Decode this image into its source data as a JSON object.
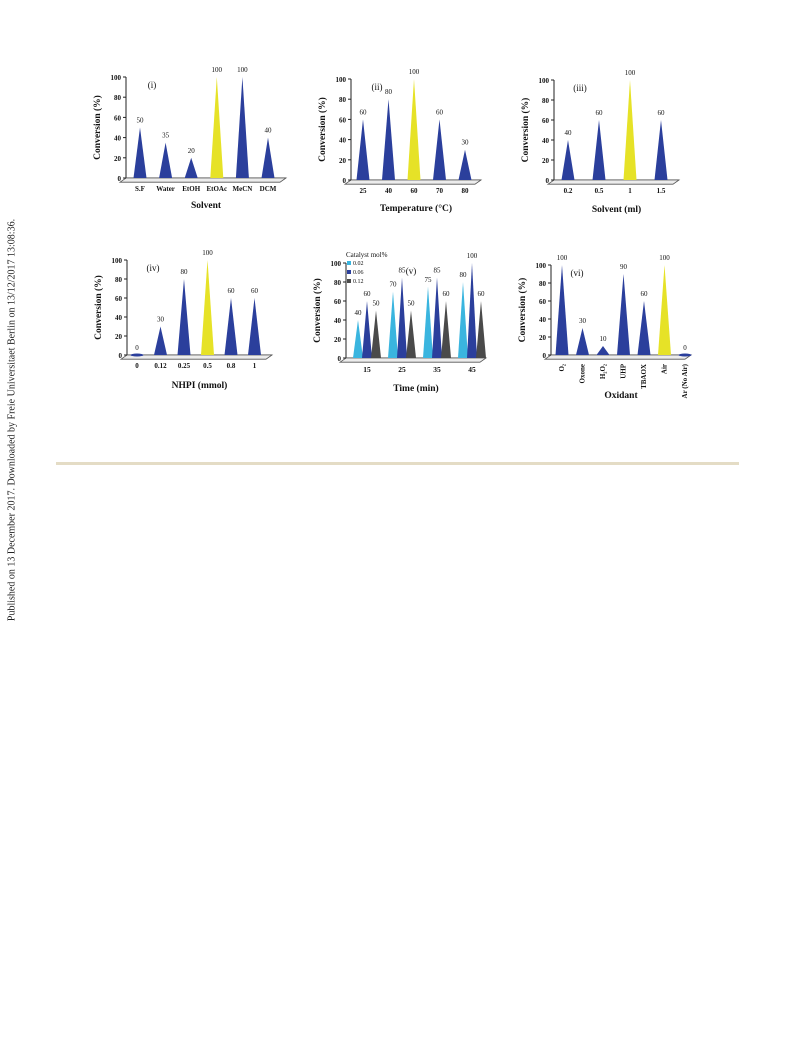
{
  "side_note": "Published on 13 December 2017. Downloaded by Freie Universitaet Berlin on 13/12/2017 13:08:36.",
  "colors": {
    "blue": "#2b3f9c",
    "yellow": "#e6e227",
    "cyan": "#3ab5df",
    "grey": "#4a4a4a",
    "rule": "#e4dcc5"
  },
  "chart_data": [
    {
      "type": "bar",
      "panel": "(i)",
      "xlabel": "Solvent",
      "ylabel": "Conversion (%)",
      "ylim": [
        0,
        100
      ],
      "yticks": [
        0,
        20,
        40,
        60,
        80,
        100
      ],
      "categories": [
        "S.F",
        "Water",
        "EtOH",
        "EtOAc",
        "MeCN",
        "DCM"
      ],
      "values": [
        50,
        35,
        20,
        100,
        100,
        40
      ],
      "highlight": [
        3
      ]
    },
    {
      "type": "bar",
      "panel": "(ii)",
      "xlabel": "Temperature (°C)",
      "ylabel": "Conversion (%)",
      "ylim": [
        0,
        100
      ],
      "yticks": [
        0,
        20,
        40,
        60,
        80,
        100
      ],
      "categories": [
        "25",
        "40",
        "60",
        "70",
        "80"
      ],
      "values": [
        60,
        80,
        100,
        60,
        30
      ],
      "highlight": [
        2
      ]
    },
    {
      "type": "bar",
      "panel": "(iii)",
      "xlabel": "Solvent (ml)",
      "ylabel": "Conversion (%)",
      "ylim": [
        0,
        100
      ],
      "yticks": [
        0,
        20,
        40,
        60,
        80,
        100
      ],
      "categories": [
        "0.2",
        "0.5",
        "1",
        "1.5"
      ],
      "values": [
        40,
        60,
        100,
        60
      ],
      "highlight": [
        2
      ]
    },
    {
      "type": "bar",
      "panel": "(iv)",
      "xlabel": "NHPI (mmol)",
      "ylabel": "Conversion (%)",
      "ylim": [
        0,
        100
      ],
      "yticks": [
        0,
        20,
        40,
        60,
        80,
        100
      ],
      "categories": [
        "0",
        "0.12",
        "0.25",
        "0.5",
        "0.8",
        "1"
      ],
      "values": [
        0,
        30,
        80,
        100,
        60,
        60
      ],
      "highlight": [
        3
      ]
    },
    {
      "type": "bar",
      "panel": "(v)",
      "xlabel": "Time (min)",
      "ylabel": "Conversion (%)",
      "ylim": [
        0,
        100
      ],
      "yticks": [
        0,
        20,
        40,
        60,
        80,
        100
      ],
      "legend_title": "Catalyst mol%",
      "legend": "top-left",
      "categories": [
        "15",
        "25",
        "35",
        "45"
      ],
      "series": [
        {
          "name": "0.02",
          "values": [
            40,
            70,
            75,
            80
          ]
        },
        {
          "name": "0.06",
          "values": [
            60,
            85,
            85,
            100
          ]
        },
        {
          "name": "0.12",
          "values": [
            50,
            50,
            60,
            60
          ]
        }
      ]
    },
    {
      "type": "bar",
      "panel": "(vi)",
      "xlabel": "Oxidant",
      "ylabel": "Conversion (%)",
      "ylim": [
        0,
        100
      ],
      "yticks": [
        0,
        20,
        40,
        60,
        80,
        100
      ],
      "categories": [
        "O₂",
        "Oxone",
        "H₂O₂",
        "UHP",
        "TBAOX",
        "Air",
        "Ar (No Air)"
      ],
      "values": [
        100,
        30,
        10,
        90,
        60,
        100,
        0
      ],
      "highlight": [
        5
      ],
      "rotated_ticks": true
    }
  ]
}
